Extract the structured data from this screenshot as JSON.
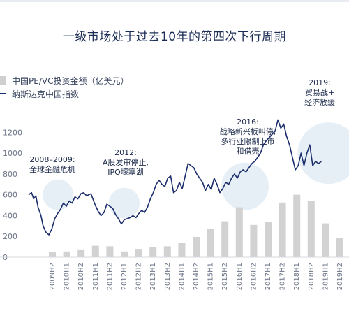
{
  "chart_data": {
    "type": "bar+line",
    "title": "一级市场处于过去10年的第四次下行周期",
    "legend": [
      {
        "name": "中国PE/VC投资金额（亿美元）",
        "marker": "bar",
        "color": "#cfcfcf"
      },
      {
        "name": "纳斯达克中国指数",
        "marker": "line",
        "color": "#1b2d6b"
      }
    ],
    "yaxis_ticks": [
      0,
      200,
      400,
      600,
      800,
      1000,
      1200
    ],
    "ylim": [
      0,
      1330
    ],
    "grid": false,
    "categories": [
      "2009H2",
      "2010H1",
      "2010H2",
      "2011H1",
      "2011H2",
      "2012H1",
      "2012H2",
      "2013H1",
      "2013H2",
      "2014H1",
      "2014H2",
      "2015H1",
      "2015H2",
      "2016H1",
      "2016H2",
      "2017H1",
      "2017H2",
      "2018H1",
      "2018H2",
      "2019H1",
      "2019H2"
    ],
    "bar_series": {
      "name": "中国PE/VC投资金额（亿美元）",
      "values": [
        50,
        55,
        75,
        110,
        105,
        55,
        80,
        95,
        105,
        135,
        195,
        270,
        345,
        480,
        310,
        340,
        525,
        600,
        540,
        325,
        185
      ]
    },
    "line_series": {
      "name": "纳斯达克中国指数",
      "points": [
        [
          0.0,
          600
        ],
        [
          0.2,
          620
        ],
        [
          0.35,
          560
        ],
        [
          0.5,
          590
        ],
        [
          0.65,
          480
        ],
        [
          0.85,
          400
        ],
        [
          1.0,
          300
        ],
        [
          1.2,
          240
        ],
        [
          1.4,
          215
        ],
        [
          1.6,
          270
        ],
        [
          1.8,
          370
        ],
        [
          2.0,
          420
        ],
        [
          2.2,
          460
        ],
        [
          2.4,
          520
        ],
        [
          2.6,
          490
        ],
        [
          2.8,
          540
        ],
        [
          3.0,
          520
        ],
        [
          3.2,
          580
        ],
        [
          3.4,
          560
        ],
        [
          3.6,
          610
        ],
        [
          3.8,
          620
        ],
        [
          4.0,
          590
        ],
        [
          4.3,
          610
        ],
        [
          4.6,
          500
        ],
        [
          4.8,
          440
        ],
        [
          5.0,
          400
        ],
        [
          5.2,
          430
        ],
        [
          5.4,
          510
        ],
        [
          5.6,
          490
        ],
        [
          5.8,
          470
        ],
        [
          6.0,
          410
        ],
        [
          6.2,
          370
        ],
        [
          6.4,
          320
        ],
        [
          6.6,
          360
        ],
        [
          6.8,
          370
        ],
        [
          7.0,
          380
        ],
        [
          7.2,
          400
        ],
        [
          7.4,
          380
        ],
        [
          7.6,
          420
        ],
        [
          7.8,
          450
        ],
        [
          8.0,
          430
        ],
        [
          8.2,
          480
        ],
        [
          8.4,
          560
        ],
        [
          8.6,
          620
        ],
        [
          8.8,
          700
        ],
        [
          9.0,
          740
        ],
        [
          9.2,
          700
        ],
        [
          9.4,
          680
        ],
        [
          9.6,
          760
        ],
        [
          9.8,
          780
        ],
        [
          10.0,
          620
        ],
        [
          10.2,
          640
        ],
        [
          10.4,
          720
        ],
        [
          10.6,
          660
        ],
        [
          10.8,
          780
        ],
        [
          11.0,
          900
        ],
        [
          11.2,
          880
        ],
        [
          11.4,
          860
        ],
        [
          11.6,
          800
        ],
        [
          11.8,
          760
        ],
        [
          12.0,
          720
        ],
        [
          12.2,
          640
        ],
        [
          12.4,
          700
        ],
        [
          12.6,
          650
        ],
        [
          12.8,
          760
        ],
        [
          13.0,
          700
        ],
        [
          13.2,
          620
        ],
        [
          13.4,
          660
        ],
        [
          13.6,
          720
        ],
        [
          13.8,
          700
        ],
        [
          14.0,
          760
        ],
        [
          14.2,
          800
        ],
        [
          14.4,
          760
        ],
        [
          14.6,
          820
        ],
        [
          14.8,
          840
        ],
        [
          15.0,
          820
        ],
        [
          15.2,
          860
        ],
        [
          15.4,
          900
        ],
        [
          15.6,
          920
        ],
        [
          15.8,
          960
        ],
        [
          16.0,
          1000
        ],
        [
          16.2,
          1080
        ],
        [
          16.4,
          1120
        ],
        [
          16.6,
          1150
        ],
        [
          16.8,
          1180
        ],
        [
          17.0,
          1210
        ],
        [
          17.2,
          1320
        ],
        [
          17.4,
          1240
        ],
        [
          17.6,
          1280
        ],
        [
          17.8,
          1160
        ],
        [
          18.0,
          1080
        ],
        [
          18.2,
          960
        ],
        [
          18.4,
          840
        ],
        [
          18.6,
          880
        ],
        [
          18.8,
          1000
        ],
        [
          19.0,
          880
        ],
        [
          19.2,
          1000
        ],
        [
          19.4,
          1080
        ],
        [
          19.6,
          880
        ],
        [
          19.8,
          920
        ],
        [
          20.0,
          900
        ],
        [
          20.2,
          920
        ]
      ]
    },
    "annotations": [
      {
        "lines": [
          "2008–2009:",
          "全球金融危机"
        ],
        "at_index": 0.4,
        "circle_y": 600
      },
      {
        "lines": [
          "2012:",
          "A股发审停止,",
          "IPO堰塞湖"
        ],
        "at_index": 5.0,
        "circle_y": 520
      },
      {
        "lines": [
          "2016:",
          "战略新兴板叫停,",
          "多行业限制上市",
          "和借壳"
        ],
        "at_index": 13.4,
        "circle_y": 680
      },
      {
        "lines": [
          "2019:",
          "贸易战+",
          "经济放缓"
        ],
        "at_index": 19.2,
        "circle_y": 1000
      }
    ]
  }
}
